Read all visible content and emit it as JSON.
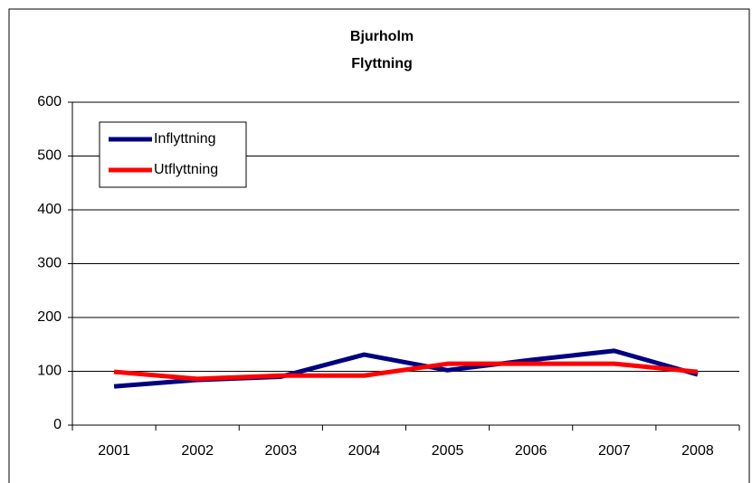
{
  "chart_data": {
    "type": "line",
    "title": "Bjurholm",
    "subtitle": "Flyttning",
    "categories": [
      "2001",
      "2002",
      "2003",
      "2004",
      "2005",
      "2006",
      "2007",
      "2008"
    ],
    "series": [
      {
        "name": "Inflyttning",
        "color": "#000080",
        "values": [
          72,
          84,
          90,
          131,
          102,
          121,
          138,
          94
        ]
      },
      {
        "name": "Utflyttning",
        "color": "#ff0000",
        "values": [
          99,
          86,
          92,
          92,
          114,
          114,
          114,
          99
        ]
      }
    ],
    "ylim": [
      0,
      600
    ],
    "yticks": [
      0,
      100,
      200,
      300,
      400,
      500,
      600
    ],
    "grid": true,
    "legend": "top-left"
  }
}
